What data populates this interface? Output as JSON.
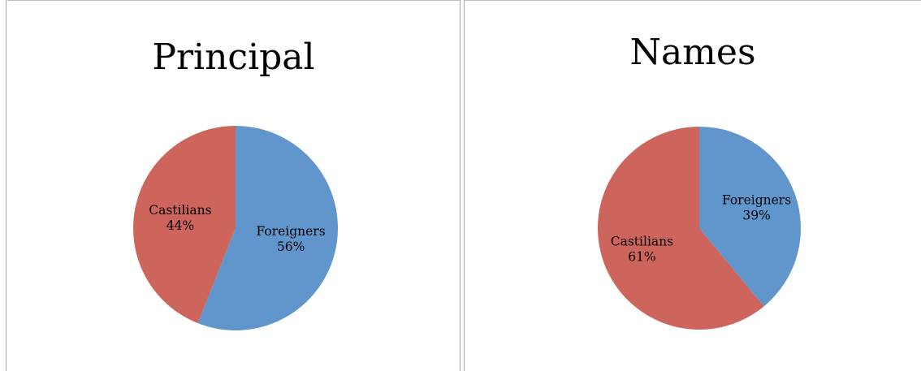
{
  "chart_data": [
    {
      "type": "pie",
      "title": "Principal",
      "slices": [
        {
          "label": "Foreigners",
          "value": 56,
          "display": "56%",
          "color": "#6196cc"
        },
        {
          "label": "Castilians",
          "value": 44,
          "display": "44%",
          "color": "#cd655d"
        }
      ]
    },
    {
      "type": "pie",
      "title": "Names",
      "slices": [
        {
          "label": "Foreigners",
          "value": 39,
          "display": "39%",
          "color": "#6196cc"
        },
        {
          "label": "Castilians",
          "value": 61,
          "display": "61%",
          "color": "#cd655d"
        }
      ]
    }
  ]
}
